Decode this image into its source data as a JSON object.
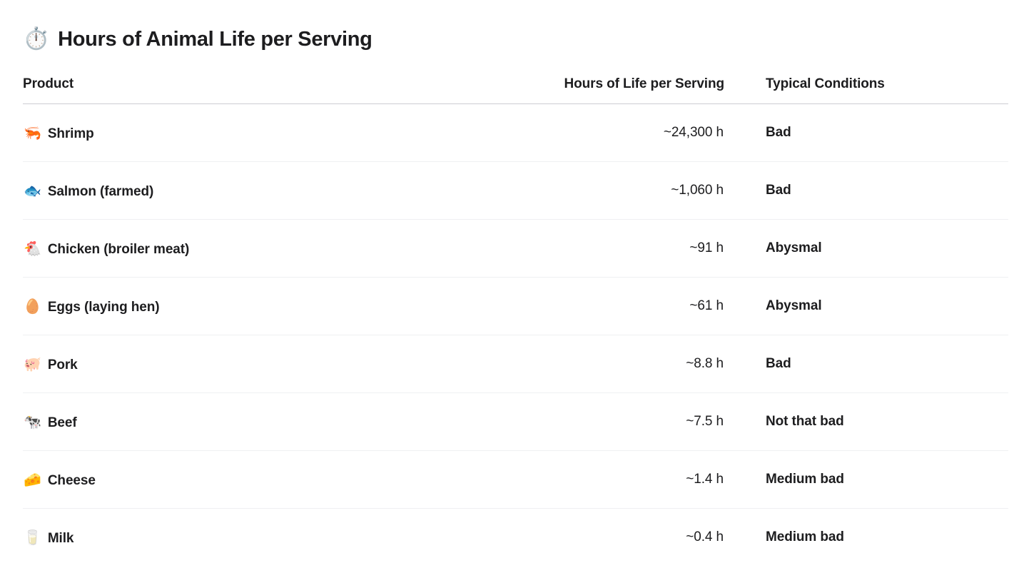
{
  "page": {
    "title": "Hours of Animal Life per Serving",
    "title_icon": "⏱️"
  },
  "table": {
    "headers": {
      "product": "Product",
      "hours": "Hours of Life per Serving",
      "conditions": "Typical Conditions"
    },
    "rows": [
      {
        "icon": "🦐",
        "product": "Shrimp",
        "hours": "~24,300 h",
        "conditions": "Bad"
      },
      {
        "icon": "🐟",
        "product": "Salmon (farmed)",
        "hours": "~1,060 h",
        "conditions": "Bad"
      },
      {
        "icon": "🐔",
        "product": "Chicken (broiler meat)",
        "hours": "~91 h",
        "conditions": "Abysmal"
      },
      {
        "icon": "🥚",
        "product": "Eggs (laying hen)",
        "hours": "~61 h",
        "conditions": "Abysmal"
      },
      {
        "icon": "🐖",
        "product": "Pork",
        "hours": "~8.8 h",
        "conditions": "Bad"
      },
      {
        "icon": "🐄",
        "product": "Beef",
        "hours": "~7.5 h",
        "conditions": "Not that bad"
      },
      {
        "icon": "🧀",
        "product": "Cheese",
        "hours": "~1.4 h",
        "conditions": "Medium bad"
      },
      {
        "icon": "🥛",
        "product": "Milk",
        "hours": "~0.4 h",
        "conditions": "Medium bad"
      }
    ]
  },
  "chart_data": {
    "type": "table",
    "title": "Hours of Animal Life per Serving",
    "columns": [
      "Product",
      "Hours of Life per Serving",
      "Typical Conditions"
    ],
    "rows": [
      [
        "Shrimp",
        "~24,300 h",
        "Bad"
      ],
      [
        "Salmon (farmed)",
        "~1,060 h",
        "Bad"
      ],
      [
        "Chicken (broiler meat)",
        "~91 h",
        "Abysmal"
      ],
      [
        "Eggs (laying hen)",
        "~61 h",
        "Abysmal"
      ],
      [
        "Pork",
        "~8.8 h",
        "Bad"
      ],
      [
        "Beef",
        "~7.5 h",
        "Not that bad"
      ],
      [
        "Cheese",
        "~1.4 h",
        "Medium bad"
      ],
      [
        "Milk",
        "~0.4 h",
        "Medium bad"
      ]
    ],
    "hours_numeric": [
      24300,
      1060,
      91,
      61,
      8.8,
      7.5,
      1.4,
      0.4
    ]
  },
  "colors": {
    "background": "#ffffff",
    "text": "#1d1d1f",
    "header_divider": "#cdcdd2",
    "row_divider": "#eff0f2"
  }
}
